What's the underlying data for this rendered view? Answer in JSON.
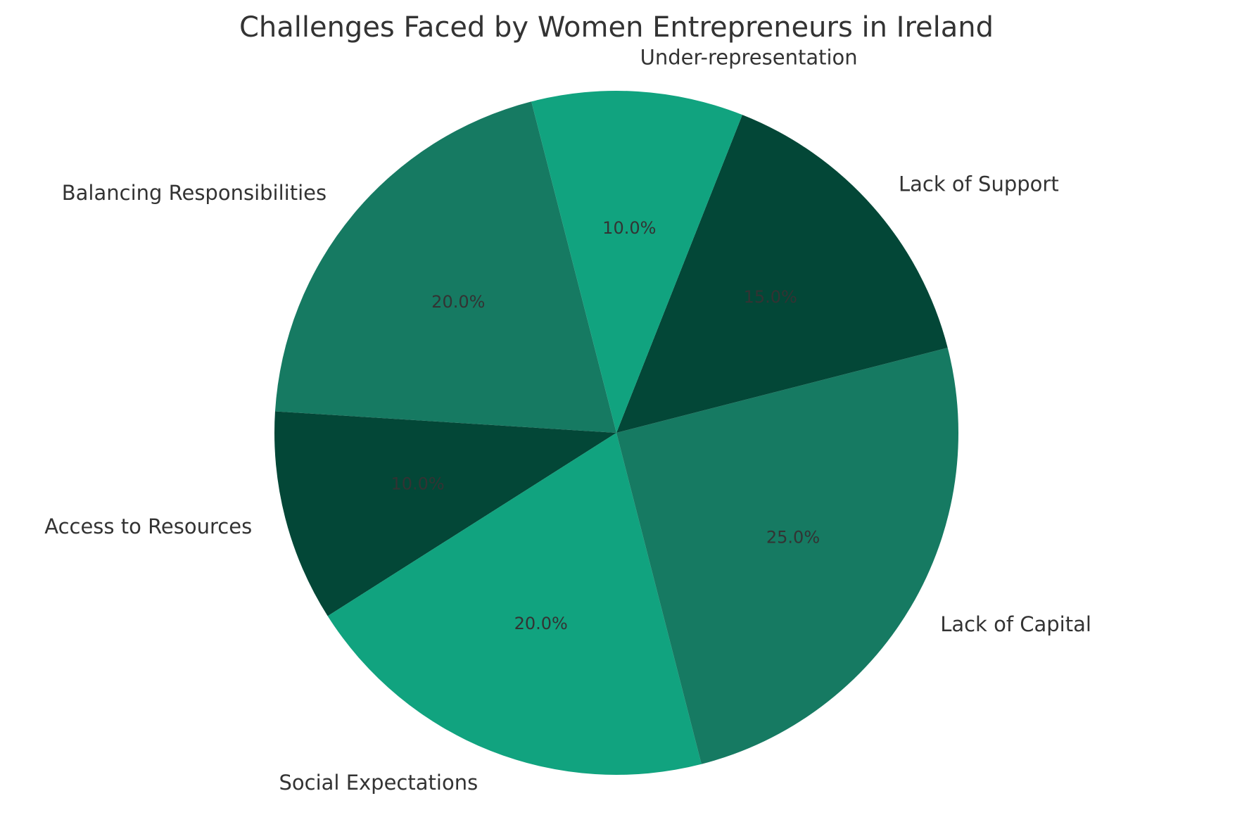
{
  "chart_data": {
    "type": "pie",
    "title": "Challenges Faced by Women Entrepreneurs in Ireland",
    "start_angle_deg": 104.4,
    "direction": "counterclockwise",
    "slices": [
      {
        "label": "Balancing Responsibilities",
        "value": 20,
        "pct_label": "20.0%",
        "color": "#167a62"
      },
      {
        "label": "Access to Resources",
        "value": 10,
        "pct_label": "10.0%",
        "color": "#034737"
      },
      {
        "label": "Social Expectations",
        "value": 20,
        "pct_label": "20.0%",
        "color": "#11a37f"
      },
      {
        "label": "Lack of Capital",
        "value": 25,
        "pct_label": "25.0%",
        "color": "#167a62"
      },
      {
        "label": "Lack of Support",
        "value": 15,
        "pct_label": "15.0%",
        "color": "#034737"
      },
      {
        "label": "Under-representation",
        "value": 10,
        "pct_label": "10.0%",
        "color": "#11a37f"
      }
    ]
  }
}
